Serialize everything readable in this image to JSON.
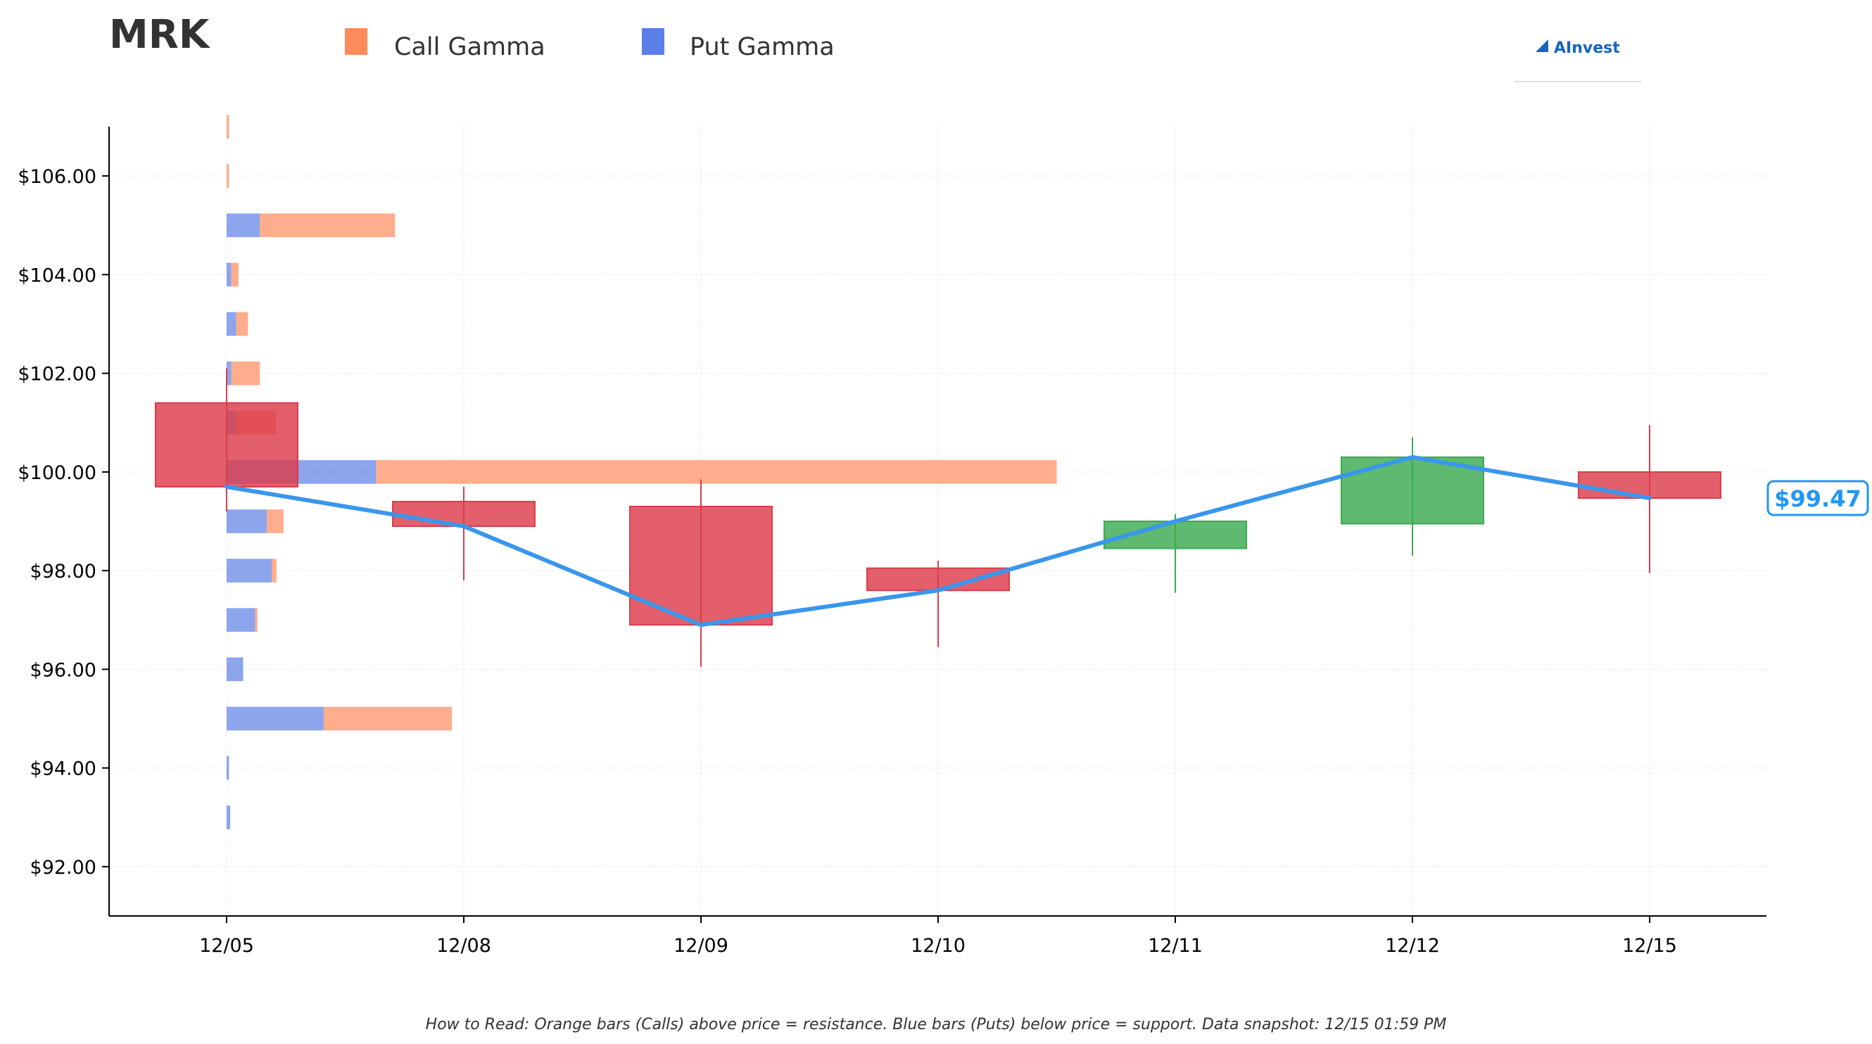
{
  "chart_data": {
    "type": "candlestick",
    "title": "MRK",
    "legend": [
      {
        "name": "Call Gamma",
        "color": "#FF8A5B"
      },
      {
        "name": "Put Gamma",
        "color": "#5B7FE6"
      }
    ],
    "legend_placement": "top",
    "categories": [
      "12/05",
      "12/08",
      "12/09",
      "12/10",
      "12/11",
      "12/12",
      "12/15"
    ],
    "ylim": [
      91.0,
      107.0
    ],
    "y_ticks": [
      92,
      94,
      96,
      98,
      100,
      102,
      104,
      106
    ],
    "y_tick_labels": [
      "$92.00",
      "$94.00",
      "$96.00",
      "$98.00",
      "$100.00",
      "$102.00",
      "$104.00",
      "$106.00"
    ],
    "candles": [
      {
        "date": "12/05",
        "open": 101.4,
        "high": 102.1,
        "low": 99.2,
        "close": 99.7
      },
      {
        "date": "12/08",
        "open": 99.4,
        "high": 99.7,
        "low": 97.8,
        "close": 98.9
      },
      {
        "date": "12/09",
        "open": 99.3,
        "high": 99.85,
        "low": 96.05,
        "close": 96.9
      },
      {
        "date": "12/10",
        "open": 98.05,
        "high": 98.2,
        "low": 96.45,
        "close": 97.6
      },
      {
        "date": "12/11",
        "open": 98.45,
        "high": 99.15,
        "low": 97.55,
        "close": 99.0
      },
      {
        "date": "12/12",
        "open": 98.95,
        "high": 100.7,
        "low": 98.3,
        "close": 100.3
      },
      {
        "date": "12/15",
        "open": 100.0,
        "high": 100.95,
        "low": 97.95,
        "close": 99.47
      }
    ],
    "close_line": [
      99.7,
      98.9,
      96.9,
      97.6,
      99.0,
      100.3,
      99.47
    ],
    "gamma_scale_days": 3.5,
    "gamma": [
      {
        "strike": 107,
        "put": 0.0,
        "call": 0.01
      },
      {
        "strike": 106,
        "put": 0.0,
        "call": 0.01
      },
      {
        "strike": 105,
        "put": 0.14,
        "call": 0.57
      },
      {
        "strike": 104,
        "put": 0.02,
        "call": 0.03
      },
      {
        "strike": 103,
        "put": 0.04,
        "call": 0.05
      },
      {
        "strike": 102,
        "put": 0.02,
        "call": 0.12
      },
      {
        "strike": 101,
        "put": 0.04,
        "call": 0.17
      },
      {
        "strike": 100,
        "put": 0.63,
        "call": 2.87
      },
      {
        "strike": 99,
        "put": 0.17,
        "call": 0.07
      },
      {
        "strike": 98,
        "put": 0.19,
        "call": 0.02
      },
      {
        "strike": 97,
        "put": 0.12,
        "call": 0.01
      },
      {
        "strike": 96,
        "put": 0.07,
        "call": 0.0
      },
      {
        "strike": 95,
        "put": 0.41,
        "call": 0.54
      },
      {
        "strike": 94,
        "put": 0.01,
        "call": 0.0
      },
      {
        "strike": 93,
        "put": 0.015,
        "call": 0.0
      }
    ],
    "current_price_label": "$99.47",
    "current_price": 99.47,
    "colors": {
      "up": "#3CAA50",
      "down": "#DC3C4B",
      "close_line": "#3A96EB",
      "call": "#FF8A5B",
      "put": "#5B7FE6"
    },
    "grid": true,
    "footer": "How to Read: Orange bars (Calls) above price = resistance. Blue bars (Puts) below price = support. Data snapshot: 12/15 01:59 PM"
  },
  "branding": {
    "logo_text": "AInvest"
  }
}
